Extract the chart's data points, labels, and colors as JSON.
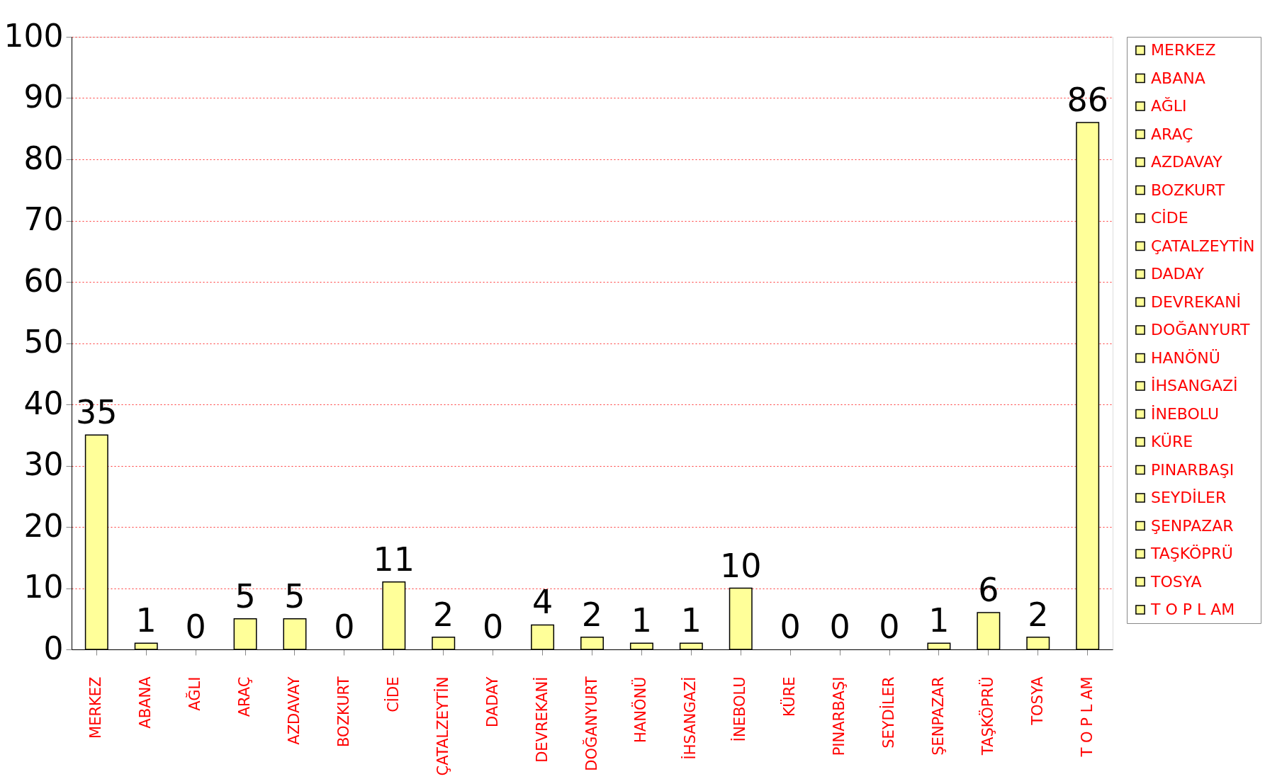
{
  "chart_data": {
    "type": "bar",
    "stacked": true,
    "categories": [
      "MERKEZ",
      "ABANA",
      "AĞLI",
      "ARAÇ",
      "AZDAVAY",
      "BOZKURT",
      "CİDE",
      "ÇATALZEYTİN",
      "DADAY",
      "DEVREKANİ",
      "DOĞANYURT",
      "HANÖNÜ",
      "İHSANGAZİ",
      "İNEBOLU",
      "KÜRE",
      "PINARBAŞI",
      "SEYDİLER",
      "ŞENPAZAR",
      "TAŞKÖPRÜ",
      "TOSYA",
      "T O P L AM"
    ],
    "series": [
      {
        "name": "MERKEZ",
        "color": "#ffff99",
        "values": [
          35,
          null,
          null,
          null,
          null,
          null,
          null,
          null,
          null,
          null,
          null,
          null,
          null,
          null,
          null,
          null,
          null,
          null,
          null,
          null,
          null
        ]
      },
      {
        "name": "ABANA",
        "color": "#ffff99",
        "values": [
          null,
          1,
          null,
          null,
          null,
          null,
          null,
          null,
          null,
          null,
          null,
          null,
          null,
          null,
          null,
          null,
          null,
          null,
          null,
          null,
          null
        ]
      },
      {
        "name": "AĞLI",
        "color": "#ffff99",
        "values": [
          null,
          null,
          0,
          null,
          null,
          null,
          null,
          null,
          null,
          null,
          null,
          null,
          null,
          null,
          null,
          null,
          null,
          null,
          null,
          null,
          null
        ]
      },
      {
        "name": "ARAÇ",
        "color": "#ffff99",
        "values": [
          null,
          null,
          null,
          5,
          null,
          null,
          null,
          null,
          null,
          null,
          null,
          null,
          null,
          null,
          null,
          null,
          null,
          null,
          null,
          null,
          null
        ]
      },
      {
        "name": "AZDAVAY",
        "color": "#ffff99",
        "values": [
          null,
          null,
          null,
          null,
          5,
          null,
          null,
          null,
          null,
          null,
          null,
          null,
          null,
          null,
          null,
          null,
          null,
          null,
          null,
          null,
          null
        ]
      },
      {
        "name": "BOZKURT",
        "color": "#ffff99",
        "values": [
          null,
          null,
          null,
          null,
          null,
          0,
          null,
          null,
          null,
          null,
          null,
          null,
          null,
          null,
          null,
          null,
          null,
          null,
          null,
          null,
          null
        ]
      },
      {
        "name": "CİDE",
        "color": "#ffff99",
        "values": [
          null,
          null,
          null,
          null,
          null,
          null,
          11,
          null,
          null,
          null,
          null,
          null,
          null,
          null,
          null,
          null,
          null,
          null,
          null,
          null,
          null
        ]
      },
      {
        "name": "ÇATALZEYTİN",
        "color": "#ffff99",
        "values": [
          null,
          null,
          null,
          null,
          null,
          null,
          null,
          2,
          null,
          null,
          null,
          null,
          null,
          null,
          null,
          null,
          null,
          null,
          null,
          null,
          null
        ]
      },
      {
        "name": "DADAY",
        "color": "#ffff99",
        "values": [
          null,
          null,
          null,
          null,
          null,
          null,
          null,
          null,
          0,
          null,
          null,
          null,
          null,
          null,
          null,
          null,
          null,
          null,
          null,
          null,
          null
        ]
      },
      {
        "name": "DEVREKANİ",
        "color": "#ffff99",
        "values": [
          null,
          null,
          null,
          null,
          null,
          null,
          null,
          null,
          null,
          4,
          null,
          null,
          null,
          null,
          null,
          null,
          null,
          null,
          null,
          null,
          null
        ]
      },
      {
        "name": "DOĞANYURT",
        "color": "#ffff99",
        "values": [
          null,
          null,
          null,
          null,
          null,
          null,
          null,
          null,
          null,
          null,
          2,
          null,
          null,
          null,
          null,
          null,
          null,
          null,
          null,
          null,
          null
        ]
      },
      {
        "name": "HANÖNÜ",
        "color": "#ffff99",
        "values": [
          null,
          null,
          null,
          null,
          null,
          null,
          null,
          null,
          null,
          null,
          null,
          1,
          null,
          null,
          null,
          null,
          null,
          null,
          null,
          null,
          null
        ]
      },
      {
        "name": "İHSANGAZİ",
        "color": "#ffff99",
        "values": [
          null,
          null,
          null,
          null,
          null,
          null,
          null,
          null,
          null,
          null,
          null,
          null,
          1,
          null,
          null,
          null,
          null,
          null,
          null,
          null,
          null
        ]
      },
      {
        "name": "İNEBOLU",
        "color": "#ffff99",
        "values": [
          null,
          null,
          null,
          null,
          null,
          null,
          null,
          null,
          null,
          null,
          null,
          null,
          null,
          10,
          null,
          null,
          null,
          null,
          null,
          null,
          null
        ]
      },
      {
        "name": "KÜRE",
        "color": "#ffff99",
        "values": [
          null,
          null,
          null,
          null,
          null,
          null,
          null,
          null,
          null,
          null,
          null,
          null,
          null,
          null,
          0,
          null,
          null,
          null,
          null,
          null,
          null
        ]
      },
      {
        "name": "PINARBAŞI",
        "color": "#ffff99",
        "values": [
          null,
          null,
          null,
          null,
          null,
          null,
          null,
          null,
          null,
          null,
          null,
          null,
          null,
          null,
          null,
          0,
          null,
          null,
          null,
          null,
          null
        ]
      },
      {
        "name": "SEYDİLER",
        "color": "#ffff99",
        "values": [
          null,
          null,
          null,
          null,
          null,
          null,
          null,
          null,
          null,
          null,
          null,
          null,
          null,
          null,
          null,
          null,
          0,
          null,
          null,
          null,
          null
        ]
      },
      {
        "name": "ŞENPAZAR",
        "color": "#ffff99",
        "values": [
          null,
          null,
          null,
          null,
          null,
          null,
          null,
          null,
          null,
          null,
          null,
          null,
          null,
          null,
          null,
          null,
          null,
          1,
          null,
          null,
          null
        ]
      },
      {
        "name": "TAŞKÖPRÜ",
        "color": "#ffff99",
        "values": [
          null,
          null,
          null,
          null,
          null,
          null,
          null,
          null,
          null,
          null,
          null,
          null,
          null,
          null,
          null,
          null,
          null,
          null,
          6,
          null,
          null
        ]
      },
      {
        "name": "TOSYA",
        "color": "#ffff99",
        "values": [
          null,
          null,
          null,
          null,
          null,
          null,
          null,
          null,
          null,
          null,
          null,
          null,
          null,
          null,
          null,
          null,
          null,
          null,
          null,
          2,
          null
        ]
      },
      {
        "name": "T O P L AM",
        "color": "#ffff99",
        "values": [
          null,
          null,
          null,
          null,
          null,
          null,
          null,
          null,
          null,
          null,
          null,
          null,
          null,
          null,
          null,
          null,
          null,
          null,
          null,
          null,
          86
        ]
      }
    ],
    "ylim": [
      0,
      100
    ],
    "yticks": [
      0,
      10,
      20,
      30,
      40,
      50,
      60,
      70,
      80,
      90,
      100
    ],
    "grid": "y",
    "legend": "right",
    "data_labels": true
  }
}
